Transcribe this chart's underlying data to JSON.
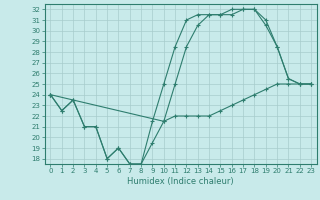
{
  "xlabel": "Humidex (Indice chaleur)",
  "ylabel": "",
  "bg_color": "#c8eaea",
  "line_color": "#2e7d6e",
  "grid_color": "#a8cccc",
  "xlim": [
    -0.5,
    23.5
  ],
  "ylim": [
    17.5,
    32.5
  ],
  "yticks": [
    18,
    19,
    20,
    21,
    22,
    23,
    24,
    25,
    26,
    27,
    28,
    29,
    30,
    31,
    32
  ],
  "xticks": [
    0,
    1,
    2,
    3,
    4,
    5,
    6,
    7,
    8,
    9,
    10,
    11,
    12,
    13,
    14,
    15,
    16,
    17,
    18,
    19,
    20,
    21,
    22,
    23
  ],
  "series1_x": [
    0,
    1,
    2,
    3,
    4,
    5,
    6,
    7,
    8,
    9,
    10,
    11,
    12,
    13,
    14,
    15,
    16,
    17,
    18,
    19,
    20,
    21,
    22,
    23
  ],
  "series1_y": [
    24.0,
    22.5,
    23.5,
    21.0,
    21.0,
    18.0,
    19.0,
    17.5,
    17.5,
    19.5,
    21.5,
    22.0,
    22.0,
    22.0,
    22.0,
    22.5,
    23.0,
    23.5,
    24.0,
    24.5,
    25.0,
    25.0,
    25.0,
    25.0
  ],
  "series2_x": [
    0,
    1,
    2,
    3,
    4,
    5,
    6,
    7,
    8,
    9,
    10,
    11,
    12,
    13,
    14,
    15,
    16,
    17,
    18,
    19,
    20,
    21,
    22,
    23
  ],
  "series2_y": [
    24.0,
    22.5,
    23.5,
    21.0,
    21.0,
    18.0,
    19.0,
    17.5,
    17.5,
    21.5,
    25.0,
    28.5,
    31.0,
    31.5,
    31.5,
    31.5,
    31.5,
    32.0,
    32.0,
    30.5,
    28.5,
    25.5,
    25.0,
    25.0
  ],
  "series3_x": [
    0,
    10,
    11,
    12,
    13,
    14,
    15,
    16,
    17,
    18,
    19,
    20,
    21,
    22,
    23
  ],
  "series3_y": [
    24.0,
    21.5,
    25.0,
    28.5,
    30.5,
    31.5,
    31.5,
    32.0,
    32.0,
    32.0,
    31.0,
    28.5,
    25.5,
    25.0,
    25.0
  ],
  "tick_fontsize": 5,
  "xlabel_fontsize": 6
}
